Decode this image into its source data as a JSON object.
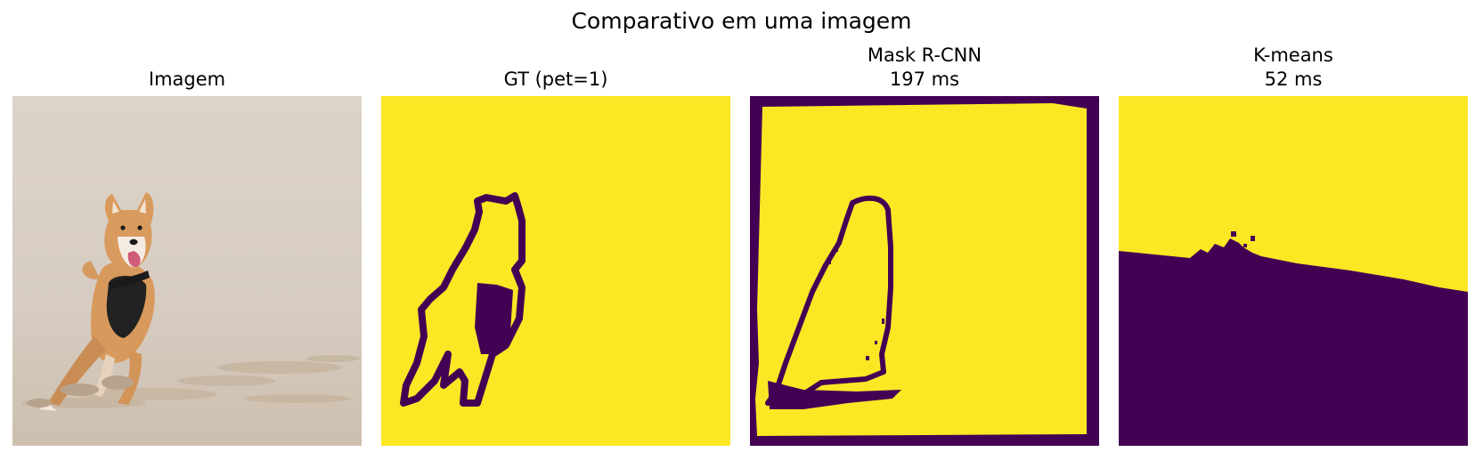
{
  "figure": {
    "title": "Comparativo em uma imagem"
  },
  "panels": [
    {
      "title_line1": "Imagem",
      "title_line2": ""
    },
    {
      "title_line1": "GT (pet=1)",
      "title_line2": ""
    },
    {
      "title_line1": "Mask R-CNN",
      "title_line2": "197 ms"
    },
    {
      "title_line1": "K-means",
      "title_line2": "52 ms"
    }
  ],
  "colors": {
    "mask_background": "#fde725",
    "mask_foreground": "#440154",
    "sand": "#d9d0c6"
  }
}
